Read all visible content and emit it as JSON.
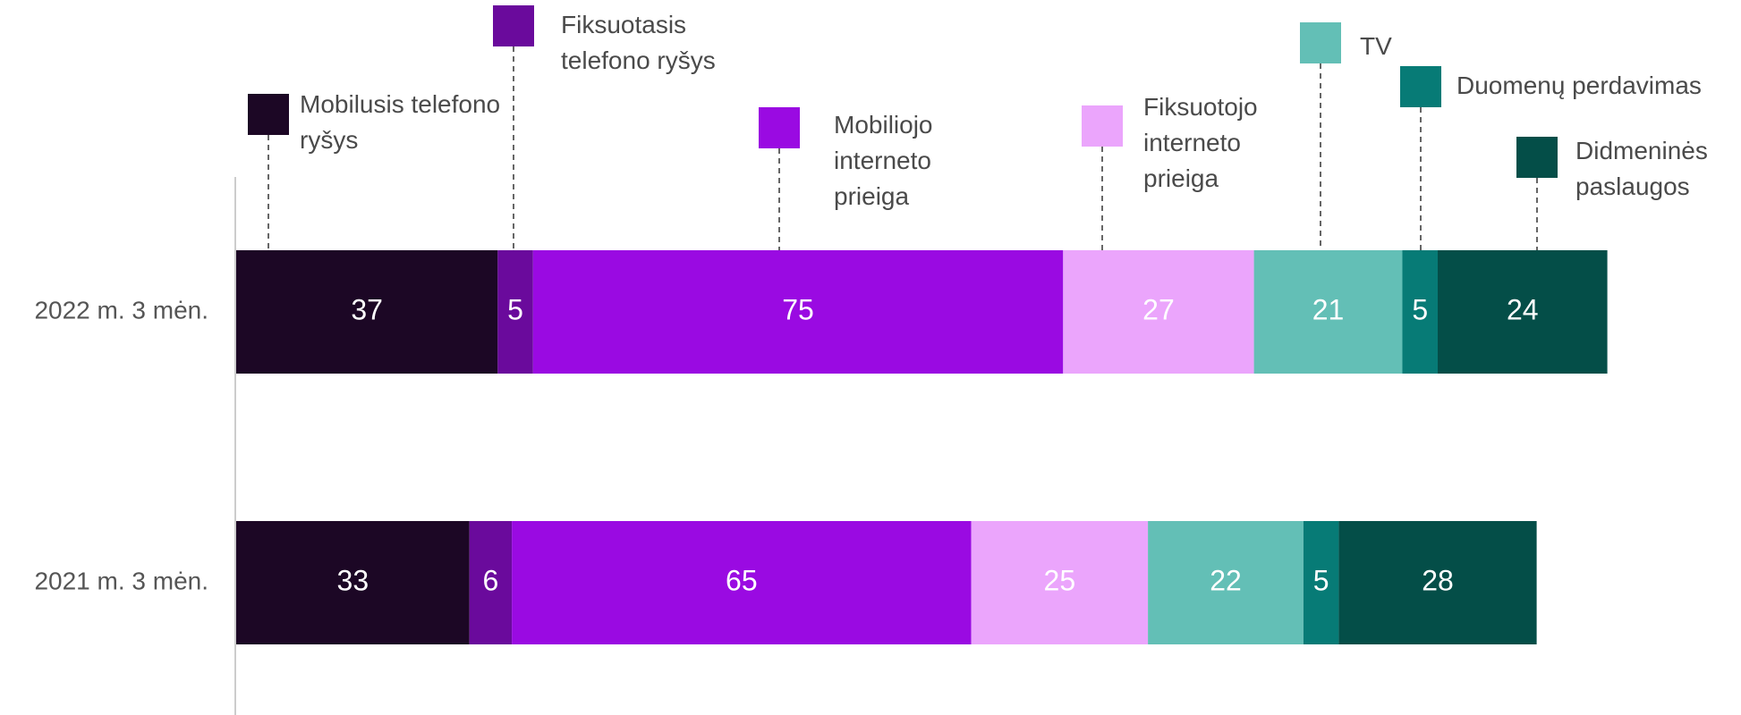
{
  "chart_data": {
    "type": "stacked_bar_horizontal",
    "categories": [
      "2022 m. 3 mėn.",
      "2021 m. 3 mėn."
    ],
    "series": [
      {
        "name": "Mobilusis telefono ryšys",
        "color": "#1c0725",
        "values": [
          37,
          33
        ]
      },
      {
        "name": "Fiksuotasis telefono ryšys",
        "color": "#6a0a9c",
        "values": [
          5,
          6
        ]
      },
      {
        "name": "Mobiliojo interneto prieiga",
        "color": "#9a0ae2",
        "values": [
          75,
          65
        ]
      },
      {
        "name": "Fiksuotojo interneto prieiga",
        "color": "#eba5fc",
        "values": [
          27,
          25
        ]
      },
      {
        "name": "TV",
        "color": "#63bfb6",
        "values": [
          21,
          22
        ]
      },
      {
        "name": "Duomenų perdavimas",
        "color": "#077b76",
        "values": [
          5,
          5
        ]
      },
      {
        "name": "Didmeninės paslaugos",
        "color": "#044e48",
        "values": [
          24,
          28
        ]
      }
    ]
  }
}
